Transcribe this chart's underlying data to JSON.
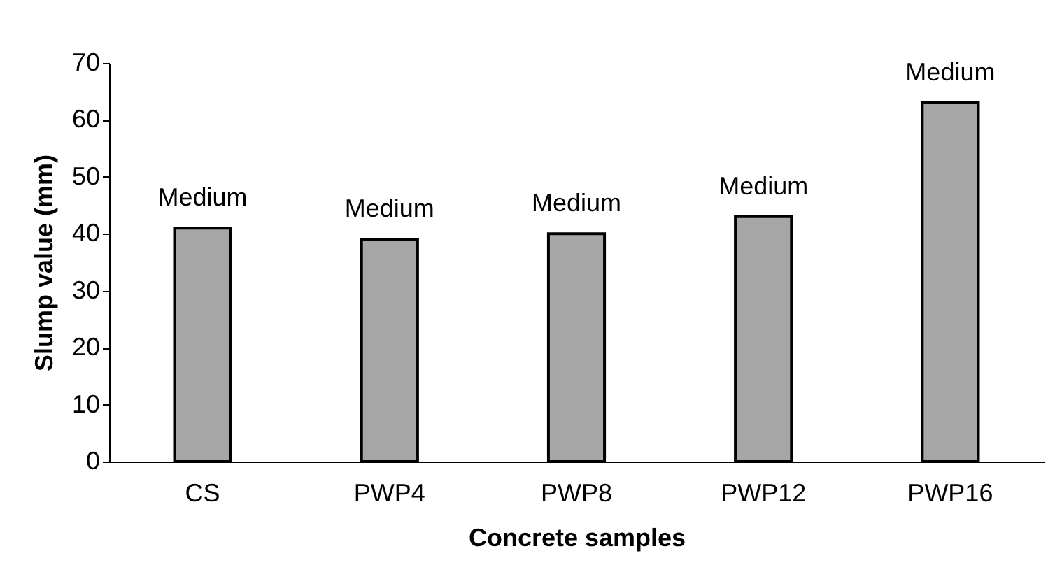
{
  "chart_data": {
    "type": "bar",
    "xlabel": "Concrete samples",
    "ylabel": "Slump value (mm)",
    "categories": [
      "CS",
      "PWP4",
      "PWP8",
      "PWP12",
      "PWP16"
    ],
    "values": [
      41,
      39,
      40,
      43,
      63
    ],
    "value_labels": [
      "Medium",
      "Medium",
      "Medium",
      "Medium",
      "Medium"
    ],
    "color": "#a6a6a6",
    "ylim": [
      0,
      70
    ],
    "yticks": [
      0,
      10,
      20,
      30,
      40,
      50,
      60,
      70
    ],
    "grid": false
  }
}
